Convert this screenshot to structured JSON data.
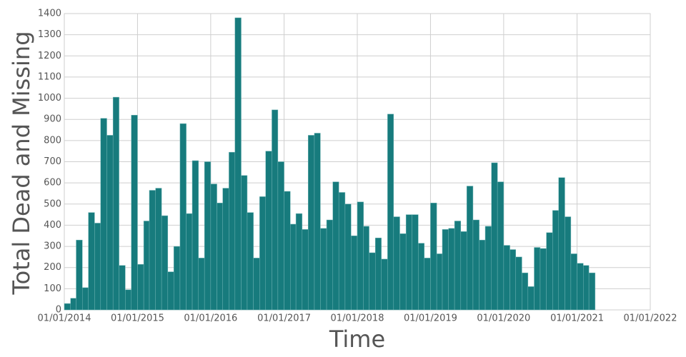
{
  "chart_data": {
    "type": "bar",
    "x_label": "Time",
    "y_label": "Total Dead and Missing",
    "color": "#177b7d",
    "grid": true,
    "x": [
      "2014-01-01",
      "2014-02-01",
      "2014-03-01",
      "2014-04-01",
      "2014-05-01",
      "2014-06-01",
      "2014-07-01",
      "2014-08-01",
      "2014-09-01",
      "2014-10-01",
      "2014-11-01",
      "2014-12-01",
      "2015-01-01",
      "2015-02-01",
      "2015-03-01",
      "2015-04-01",
      "2015-05-01",
      "2015-06-01",
      "2015-07-01",
      "2015-08-01",
      "2015-09-01",
      "2015-10-01",
      "2015-11-01",
      "2015-12-01",
      "2016-01-01",
      "2016-02-01",
      "2016-03-01",
      "2016-04-01",
      "2016-05-01",
      "2016-06-01",
      "2016-07-01",
      "2016-08-01",
      "2016-09-01",
      "2016-10-01",
      "2016-11-01",
      "2016-12-01",
      "2017-01-01",
      "2017-02-01",
      "2017-03-01",
      "2017-04-01",
      "2017-05-01",
      "2017-06-01",
      "2017-07-01",
      "2017-08-01",
      "2017-09-01",
      "2017-10-01",
      "2017-11-01",
      "2017-12-01",
      "2018-01-01",
      "2018-02-01",
      "2018-03-01",
      "2018-04-01",
      "2018-05-01",
      "2018-06-01",
      "2018-07-01",
      "2018-08-01",
      "2018-09-01",
      "2018-10-01",
      "2018-11-01",
      "2018-12-01",
      "2019-01-01",
      "2019-02-01",
      "2019-03-01",
      "2019-04-01",
      "2019-05-01",
      "2019-06-01",
      "2019-07-01",
      "2019-08-01",
      "2019-09-01",
      "2019-10-01",
      "2019-11-01",
      "2019-12-01",
      "2020-01-01",
      "2020-02-01",
      "2020-03-01",
      "2020-04-01",
      "2020-05-01",
      "2020-06-01",
      "2020-07-01",
      "2020-08-01",
      "2020-09-01",
      "2020-10-01",
      "2020-11-01",
      "2020-12-01",
      "2021-01-01",
      "2021-02-01",
      "2021-03-01"
    ],
    "values": [
      30,
      55,
      330,
      105,
      460,
      410,
      905,
      825,
      1005,
      210,
      95,
      920,
      215,
      420,
      565,
      575,
      445,
      180,
      300,
      880,
      455,
      705,
      245,
      700,
      595,
      505,
      575,
      745,
      1380,
      635,
      460,
      245,
      535,
      750,
      945,
      700,
      560,
      405,
      455,
      380,
      825,
      835,
      385,
      425,
      605,
      555,
      500,
      350,
      510,
      395,
      270,
      340,
      240,
      925,
      440,
      360,
      450,
      450,
      315,
      245,
      505,
      265,
      380,
      385,
      420,
      370,
      585,
      425,
      330,
      395,
      695,
      605,
      305,
      285,
      250,
      175,
      110,
      295,
      290,
      365,
      470,
      625,
      440,
      265,
      220,
      210,
      175
    ],
    "xlim": [
      "2014-01-01",
      "2022-01-01"
    ],
    "xticks": [
      {
        "value": "2014-01-01",
        "label": "01/01/2014"
      },
      {
        "value": "2015-01-01",
        "label": "01/01/2015"
      },
      {
        "value": "2016-01-01",
        "label": "01/01/2016"
      },
      {
        "value": "2017-01-01",
        "label": "01/01/2017"
      },
      {
        "value": "2018-01-01",
        "label": "01/01/2018"
      },
      {
        "value": "2019-01-01",
        "label": "01/01/2019"
      },
      {
        "value": "2020-01-01",
        "label": "01/01/2020"
      },
      {
        "value": "2021-01-01",
        "label": "01/01/2021"
      },
      {
        "value": "2022-01-01",
        "label": "01/01/2022"
      }
    ],
    "ylim": [
      0,
      1400
    ],
    "yticks": [
      0,
      100,
      200,
      300,
      400,
      500,
      600,
      700,
      800,
      900,
      1000,
      1100,
      1200,
      1300,
      1400
    ]
  }
}
